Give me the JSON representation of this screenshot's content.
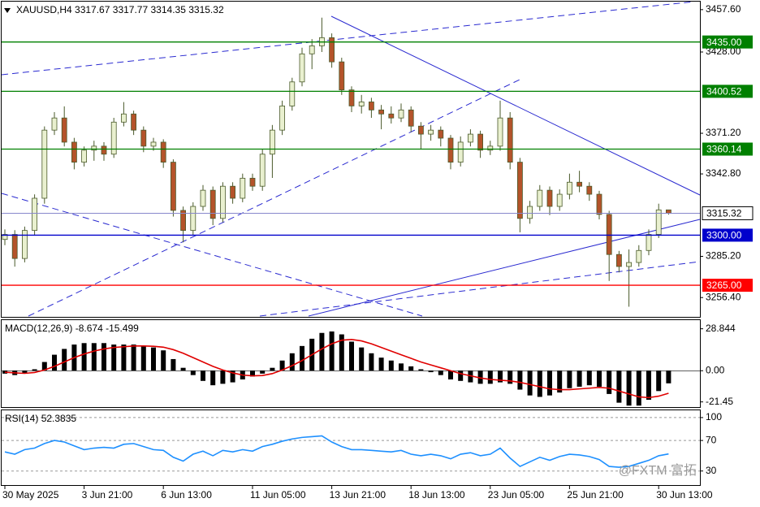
{
  "chart_data": {
    "type": "candlestick",
    "symbol": "XAUUSD,H4",
    "categories": [
      "30 May 2025",
      null,
      null,
      null,
      null,
      null,
      null,
      null,
      "3 Jun 21:00",
      null,
      null,
      null,
      null,
      null,
      null,
      null,
      "6 Jun 13:00",
      null,
      null,
      null,
      null,
      null,
      null,
      null,
      null,
      "11 Jun 05:00",
      null,
      null,
      null,
      null,
      null,
      null,
      null,
      "13 Jun 21:00",
      null,
      null,
      null,
      null,
      null,
      null,
      null,
      "18 Jun 13:00",
      null,
      null,
      null,
      null,
      null,
      null,
      null,
      "23 Jun 05:00",
      null,
      null,
      null,
      null,
      null,
      null,
      null,
      "25 Jun 21:00",
      null,
      null,
      null,
      null,
      null,
      null,
      null,
      null,
      "30 Jun 13:00",
      null
    ],
    "candles": [
      [
        3297.0,
        3304.0,
        3293.0,
        3300.5
      ],
      [
        3300.5,
        3303.5,
        3278.0,
        3283.7
      ],
      [
        3283.7,
        3306.0,
        3281.0,
        3303.3
      ],
      [
        3303.3,
        3328.5,
        3300.0,
        3325.8
      ],
      [
        3325.8,
        3376.0,
        3322.0,
        3373.4
      ],
      [
        3373.4,
        3386.0,
        3370.0,
        3381.9
      ],
      [
        3381.9,
        3390.0,
        3362.0,
        3365.0
      ],
      [
        3365.0,
        3368.0,
        3346.0,
        3351.0
      ],
      [
        3351.0,
        3362.0,
        3348.0,
        3359.4
      ],
      [
        3359.4,
        3366.0,
        3352.0,
        3362.2
      ],
      [
        3362.2,
        3365.0,
        3352.0,
        3356.6
      ],
      [
        3356.6,
        3382.0,
        3354.0,
        3379.0
      ],
      [
        3379.0,
        3393.0,
        3376.0,
        3384.7
      ],
      [
        3384.7,
        3387.0,
        3370.0,
        3373.4
      ],
      [
        3373.4,
        3376.0,
        3358.0,
        3362.2
      ],
      [
        3362.2,
        3368.0,
        3359.0,
        3365.0
      ],
      [
        3365.0,
        3367.0,
        3347.0,
        3351.0
      ],
      [
        3351.0,
        3353.0,
        3313.0,
        3317.3
      ],
      [
        3317.3,
        3320.0,
        3295.0,
        3303.3
      ],
      [
        3303.3,
        3323.0,
        3300.0,
        3320.1
      ],
      [
        3320.1,
        3335.0,
        3317.0,
        3331.4
      ],
      [
        3331.4,
        3334.0,
        3307.0,
        3311.7
      ],
      [
        3311.7,
        3337.0,
        3309.0,
        3334.2
      ],
      [
        3334.2,
        3337.0,
        3322.0,
        3325.8
      ],
      [
        3325.8,
        3343.0,
        3323.0,
        3339.8
      ],
      [
        3339.8,
        3343.0,
        3331.0,
        3334.2
      ],
      [
        3334.2,
        3360.0,
        3331.0,
        3356.6
      ],
      [
        3356.6,
        3377.0,
        3340.0,
        3373.4
      ],
      [
        3373.4,
        3394.0,
        3370.0,
        3390.3
      ],
      [
        3390.3,
        3410.0,
        3387.0,
        3407.1
      ],
      [
        3407.1,
        3431.0,
        3404.0,
        3426.7
      ],
      [
        3426.7,
        3437.0,
        3416.0,
        3432.3
      ],
      [
        3432.3,
        3452.0,
        3428.0,
        3438.0
      ],
      [
        3438.0,
        3441.0,
        3417.0,
        3421.1
      ],
      [
        3421.1,
        3424.0,
        3398.0,
        3401.5
      ],
      [
        3401.5,
        3404.0,
        3386.0,
        3390.3
      ],
      [
        3390.3,
        3398.0,
        3385.0,
        3393.1
      ],
      [
        3393.1,
        3396.0,
        3382.0,
        3387.5
      ],
      [
        3387.5,
        3391.0,
        3374.0,
        3384.7
      ],
      [
        3384.7,
        3390.0,
        3378.0,
        3381.9
      ],
      [
        3381.9,
        3392.0,
        3379.0,
        3387.5
      ],
      [
        3387.5,
        3390.0,
        3372.0,
        3376.2
      ],
      [
        3376.2,
        3379.0,
        3360.0,
        3370.6
      ],
      [
        3370.6,
        3377.0,
        3366.0,
        3373.4
      ],
      [
        3373.4,
        3376.0,
        3362.0,
        3367.8
      ],
      [
        3367.8,
        3370.0,
        3346.0,
        3351.0
      ],
      [
        3351.0,
        3369.0,
        3348.0,
        3365.0
      ],
      [
        3365.0,
        3374.0,
        3362.0,
        3370.6
      ],
      [
        3370.6,
        3373.0,
        3354.0,
        3359.4
      ],
      [
        3359.4,
        3366.0,
        3356.0,
        3362.2
      ],
      [
        3362.2,
        3394.0,
        3359.0,
        3381.9
      ],
      [
        3381.9,
        3386.0,
        3346.0,
        3351.0
      ],
      [
        3351.0,
        3354.0,
        3302.0,
        3311.7
      ],
      [
        3311.7,
        3324.0,
        3308.0,
        3320.1
      ],
      [
        3320.1,
        3335.0,
        3317.0,
        3331.4
      ],
      [
        3331.4,
        3334.0,
        3314.0,
        3320.1
      ],
      [
        3320.1,
        3332.0,
        3317.0,
        3328.6
      ],
      [
        3328.6,
        3343.0,
        3325.0,
        3337.0
      ],
      [
        3337.0,
        3345.0,
        3330.0,
        3334.2
      ],
      [
        3334.2,
        3337.0,
        3324.0,
        3328.6
      ],
      [
        3328.6,
        3331.0,
        3311.0,
        3314.5
      ],
      [
        3314.5,
        3317.0,
        3268.0,
        3286.5
      ],
      [
        3286.5,
        3289.0,
        3274.0,
        3278.1
      ],
      [
        3278.1,
        3290.0,
        3250.0,
        3280.9
      ],
      [
        3280.9,
        3293.0,
        3278.0,
        3289.3
      ],
      [
        3289.3,
        3304.0,
        3286.0,
        3300.5
      ],
      [
        3300.5,
        3322.0,
        3298.0,
        3317.67
      ],
      [
        3317.67,
        3317.77,
        3314.35,
        3315.32
      ]
    ],
    "up_color": "#e9f0cf",
    "down_color": "#b4532a",
    "wick_color": "#4a5a2a",
    "ylim": [
      3242.9,
      3463.2
    ],
    "yticks": [
      {
        "value": 3457.6,
        "label": "3457.60"
      },
      {
        "value": 3428.0,
        "label": "3428.00"
      },
      {
        "value": 3371.2,
        "label": "3371.20"
      },
      {
        "value": 3342.8,
        "label": "3342.80"
      },
      {
        "value": 3285.2,
        "label": "3285.20"
      },
      {
        "value": 3256.4,
        "label": "3256.40"
      }
    ],
    "levels": [
      {
        "value": 3435.0,
        "label": "3435.00",
        "color": "#008000"
      },
      {
        "value": 3400.52,
        "label": "3400.52",
        "color": "#008000"
      },
      {
        "value": 3360.14,
        "label": "3360.14",
        "color": "#008000"
      },
      {
        "value": 3300.0,
        "label": "3300.00",
        "color": "#0000cc"
      },
      {
        "value": 3265.0,
        "label": "3265.00",
        "color": "#ff0000"
      }
    ],
    "current_price_color": "#8888cc",
    "macd": {
      "title": "MACD(12,26,9)",
      "histogram": [
        -2,
        -3,
        -2,
        1,
        6,
        11,
        15,
        18,
        19,
        19,
        19,
        18,
        18,
        18,
        17,
        16,
        14,
        8,
        2,
        -3,
        -7,
        -10,
        -9,
        -8,
        -6,
        -4,
        -2,
        2,
        7,
        12,
        17,
        22,
        26,
        27,
        25,
        20,
        16,
        12,
        9,
        7,
        5,
        3,
        1,
        -1,
        -3,
        -6,
        -7,
        -8,
        -9,
        -9,
        -8,
        -9,
        -13,
        -17,
        -18,
        -17,
        -15,
        -12,
        -11,
        -10,
        -11,
        -16,
        -22,
        -24,
        -24,
        -20,
        -14,
        -8.674
      ],
      "signal": [
        -1,
        -1.5,
        -1.8,
        -1.2,
        0.5,
        3,
        6,
        9,
        11.5,
        13.5,
        15,
        16,
        16.5,
        17,
        17,
        16.8,
        16.2,
        14.5,
        12,
        9,
        6,
        3,
        0.5,
        -1.5,
        -3,
        -3.5,
        -3.3,
        -2,
        0.5,
        3.5,
        7,
        11,
        15,
        18.5,
        21,
        21.5,
        20.5,
        18.5,
        16,
        13.5,
        11,
        8.5,
        6,
        4,
        2,
        0,
        -2,
        -3.5,
        -5,
        -6,
        -6.5,
        -7,
        -8,
        -9.5,
        -11,
        -12.5,
        -13,
        -13,
        -12.5,
        -12,
        -11.5,
        -12,
        -14,
        -16,
        -18,
        -18.5,
        -17.5,
        -15.499
      ],
      "hist_color": "#000000",
      "signal_color": "#e00000",
      "ylim": [
        -25.0,
        34.8
      ],
      "yticks": [
        28.844,
        {
          "value": 0,
          "label": "0.00"
        },
        -21.45
      ]
    },
    "rsi": {
      "title": "RSI(14)",
      "values": [
        55,
        52,
        58,
        60,
        66,
        70,
        68,
        63,
        58,
        60,
        61,
        60,
        65,
        66,
        62,
        58,
        57,
        48,
        43,
        52,
        56,
        50,
        57,
        55,
        58,
        56,
        62,
        65,
        69,
        72,
        74,
        75,
        76,
        68,
        62,
        58,
        58,
        57,
        56,
        55,
        57,
        52,
        50,
        52,
        50,
        46,
        52,
        54,
        50,
        52,
        60,
        47,
        36,
        42,
        48,
        44,
        49,
        52,
        51,
        49,
        45,
        36,
        35,
        36,
        40,
        44,
        50,
        52.3835
      ],
      "color": "#1e90ff",
      "ylim": [
        11.6,
        109.5
      ],
      "yticks": [
        100,
        70,
        30
      ]
    },
    "watermark": "@FXTM 富拓"
  }
}
